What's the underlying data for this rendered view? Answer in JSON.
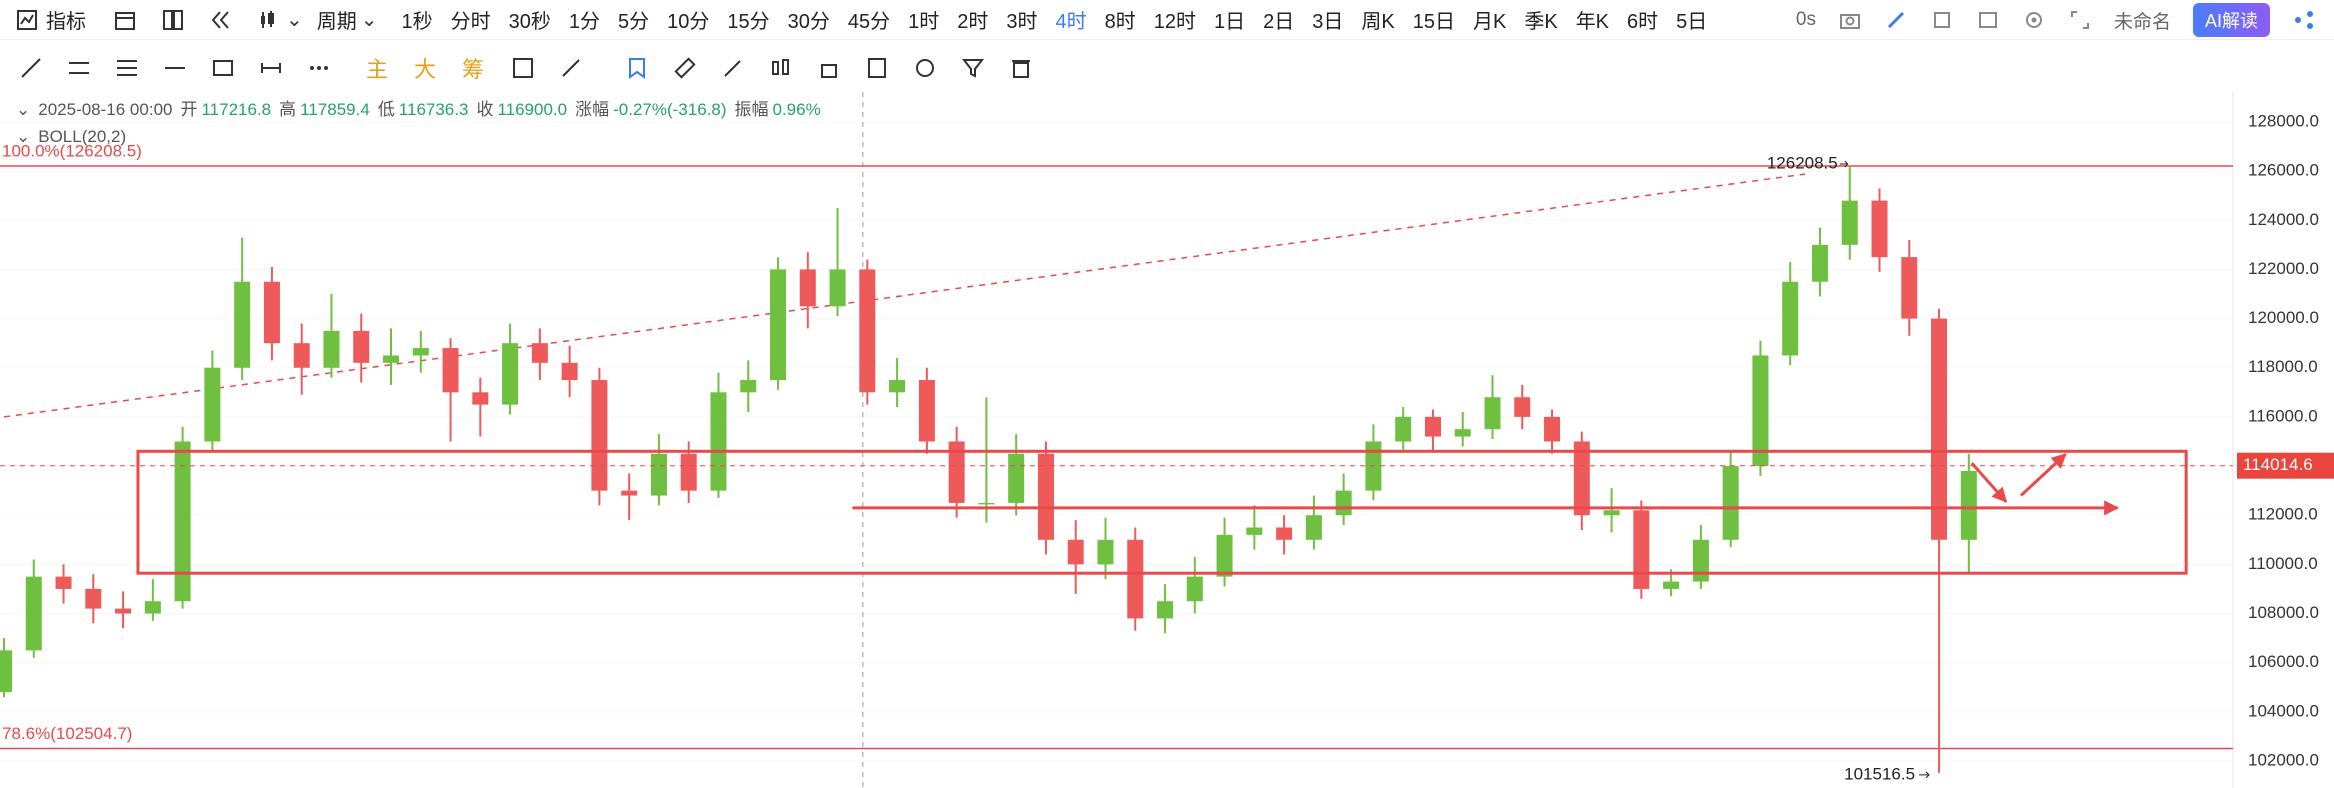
{
  "toolbar": {
    "indicator": "指标",
    "period": "周期",
    "intervals": [
      "1秒",
      "分时",
      "30秒",
      "1分",
      "5分",
      "10分",
      "15分",
      "30分",
      "45分",
      "1时",
      "2时",
      "3时",
      "4时",
      "8时",
      "12时",
      "1日",
      "2日",
      "3日",
      "周K",
      "15日",
      "月K",
      "季K",
      "年K",
      "6时",
      "5日"
    ],
    "active_interval": 12,
    "timer": "0s",
    "layout_name": "未命名",
    "ai_button": "AI解读"
  },
  "drawing_toolbar": {
    "main": "主",
    "big": "大",
    "chips": "筹"
  },
  "legend": {
    "time": "2025-08-16 00:00",
    "fields": [
      {
        "label": "开",
        "value": "117216.8"
      },
      {
        "label": "高",
        "value": "117859.4"
      },
      {
        "label": "低",
        "value": "116736.3"
      },
      {
        "label": "收",
        "value": "116900.0"
      },
      {
        "label": "涨幅",
        "value": "-0.27%(-316.8)"
      },
      {
        "label": "振幅",
        "value": "0.96%"
      }
    ],
    "indicator": "BOLL(20,2)"
  },
  "chart_data": {
    "type": "candlestick",
    "up_color": "#6fbf40",
    "down_color": "#ee5a5a",
    "candles": [
      [
        104800,
        107000,
        104600,
        106500
      ],
      [
        106500,
        110200,
        106200,
        109500
      ],
      [
        109500,
        110000,
        108400,
        109000
      ],
      [
        109000,
        109600,
        107600,
        108200
      ],
      [
        108200,
        108900,
        107400,
        108000
      ],
      [
        108000,
        109400,
        107700,
        108500
      ],
      [
        108500,
        115600,
        108200,
        115000
      ],
      [
        115000,
        118700,
        114600,
        118000
      ],
      [
        118000,
        123300,
        117500,
        121500
      ],
      [
        121500,
        122100,
        118300,
        119000
      ],
      [
        119000,
        119800,
        116900,
        118000
      ],
      [
        118000,
        121000,
        117600,
        119500
      ],
      [
        119500,
        120200,
        117400,
        118200
      ],
      [
        118200,
        119600,
        117300,
        118500
      ],
      [
        118500,
        119500,
        117800,
        118800
      ],
      [
        118800,
        119200,
        115000,
        117000
      ],
      [
        117000,
        117600,
        115200,
        116500
      ],
      [
        116500,
        119800,
        116100,
        119000
      ],
      [
        119000,
        119600,
        117500,
        118200
      ],
      [
        118200,
        118900,
        116800,
        117500
      ],
      [
        117500,
        118000,
        112400,
        113000
      ],
      [
        113000,
        113700,
        111800,
        112800
      ],
      [
        112800,
        115300,
        112400,
        114500
      ],
      [
        114500,
        115000,
        112500,
        113000
      ],
      [
        113000,
        117800,
        112700,
        117000
      ],
      [
        117000,
        118300,
        116200,
        117500
      ],
      [
        117500,
        122500,
        117100,
        122000
      ],
      [
        122000,
        122700,
        119600,
        120500
      ],
      [
        120500,
        124500,
        120100,
        122000
      ],
      [
        122000,
        122400,
        116500,
        117000
      ],
      [
        117000,
        118400,
        116400,
        117500
      ],
      [
        117500,
        118000,
        114500,
        115000
      ],
      [
        115000,
        115600,
        111900,
        112500
      ],
      [
        112500,
        116800,
        111700,
        112500
      ],
      [
        112500,
        115300,
        112000,
        114500
      ],
      [
        114500,
        115000,
        110400,
        111000
      ],
      [
        111000,
        111800,
        108800,
        110000
      ],
      [
        110000,
        111900,
        109400,
        111000
      ],
      [
        111000,
        111500,
        107300,
        107800
      ],
      [
        107800,
        109200,
        107200,
        108500
      ],
      [
        108500,
        110300,
        108000,
        109500
      ],
      [
        109500,
        111900,
        109100,
        111200
      ],
      [
        111200,
        112400,
        110600,
        111500
      ],
      [
        111500,
        112000,
        110400,
        111000
      ],
      [
        111000,
        112800,
        110600,
        112000
      ],
      [
        112000,
        113700,
        111600,
        113000
      ],
      [
        113000,
        115700,
        112600,
        115000
      ],
      [
        115000,
        116400,
        114600,
        116000
      ],
      [
        116000,
        116300,
        114600,
        115200
      ],
      [
        115200,
        116200,
        114800,
        115500
      ],
      [
        115500,
        117700,
        115100,
        116800
      ],
      [
        116800,
        117300,
        115500,
        116000
      ],
      [
        116000,
        116300,
        114500,
        115000
      ],
      [
        115000,
        115400,
        111400,
        112000
      ],
      [
        112000,
        113100,
        111300,
        112200
      ],
      [
        112200,
        112600,
        108600,
        109000
      ],
      [
        109000,
        109800,
        108700,
        109300
      ],
      [
        109300,
        111600,
        109000,
        111000
      ],
      [
        111000,
        114600,
        110700,
        114000
      ],
      [
        114000,
        119100,
        113600,
        118500
      ],
      [
        118500,
        122300,
        118100,
        121500
      ],
      [
        121500,
        123700,
        120900,
        123000
      ],
      [
        123000,
        126208.5,
        122400,
        124800
      ],
      [
        124800,
        125300,
        121900,
        122500
      ],
      [
        122500,
        123200,
        119300,
        120000
      ],
      [
        120000,
        120400,
        101516.5,
        111000
      ],
      [
        111000,
        114500,
        109600,
        113800
      ]
    ],
    "ylim": [
      100900,
      129220
    ],
    "yticks": [
      {
        "value": 102000,
        "label": "102000.0"
      },
      {
        "value": 104000,
        "label": "104000.0"
      },
      {
        "value": 106000,
        "label": "106000.0"
      },
      {
        "value": 108000,
        "label": "108000.0"
      },
      {
        "value": 110000,
        "label": "110000.0"
      },
      {
        "value": 112000,
        "label": "112000.0"
      },
      {
        "value": 114000,
        "label": "114000.0"
      },
      {
        "value": 116000,
        "label": "116000.0"
      },
      {
        "value": 118000,
        "label": "118000.0"
      },
      {
        "value": 120000,
        "label": "120000.0"
      },
      {
        "value": 122000,
        "label": "122000.0"
      },
      {
        "value": 124000,
        "label": "124000.0"
      },
      {
        "value": 126000,
        "label": "126000.0"
      },
      {
        "value": 128000,
        "label": "128000.0"
      }
    ],
    "current_price": 114014.6,
    "drawing_color": "#e9494b",
    "fib_levels": [
      {
        "label": "100.0%(126208.5)",
        "value": 126208.5
      },
      {
        "label": "78.6%(102504.7)",
        "value": 102504.7
      }
    ],
    "trendline": {
      "x": [
        0,
        60.5
      ],
      "price": [
        116000,
        125880
      ]
    },
    "high_label_candle": 62,
    "low_label_candle": 65,
    "box": {
      "x": [
        4.5,
        73.3
      ],
      "price": [
        114600,
        109640
      ]
    },
    "arrow_line": {
      "x": [
        28.5,
        71
      ],
      "price": 112300
    },
    "arrows": [
      {
        "x": [
          66.1,
          67.25
        ],
        "price": [
          114120,
          112550
        ]
      },
      {
        "x": [
          67.75,
          69.25
        ],
        "price": [
          112800,
          114480
        ]
      }
    ],
    "crosshair_x": 28.85
  }
}
